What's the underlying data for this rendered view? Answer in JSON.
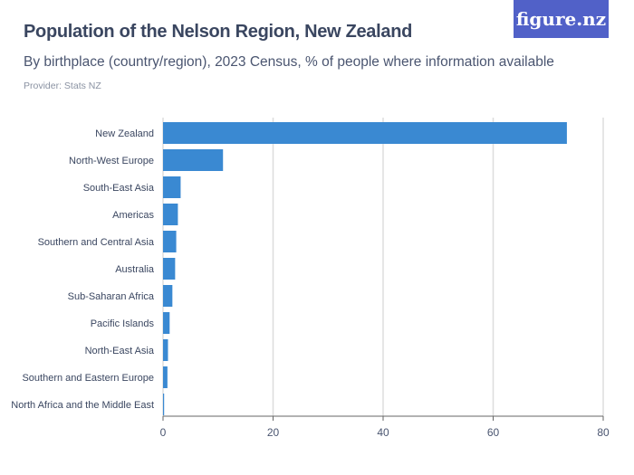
{
  "header": {
    "title": "Population of the Nelson Region, New Zealand",
    "subtitle": "By birthplace (country/region), 2023 Census, % of people where information available",
    "provider": "Provider: Stats NZ",
    "logo": "figure.nz"
  },
  "colors": {
    "bar": "#3a89d2",
    "logo_bg": "#5161c8"
  },
  "chart_data": {
    "type": "bar",
    "orientation": "horizontal",
    "categories": [
      "New Zealand",
      "North-West Europe",
      "South-East Asia",
      "Americas",
      "Southern and Central Asia",
      "Australia",
      "Sub-Saharan Africa",
      "Pacific Islands",
      "North-East Asia",
      "Southern and Eastern Europe",
      "North Africa and the Middle East"
    ],
    "values": [
      73.4,
      10.9,
      3.2,
      2.7,
      2.4,
      2.2,
      1.7,
      1.2,
      0.9,
      0.8,
      0.2
    ],
    "xlim": [
      0,
      80
    ],
    "xticks": [
      0,
      20,
      40,
      60,
      80
    ],
    "grid": true
  }
}
